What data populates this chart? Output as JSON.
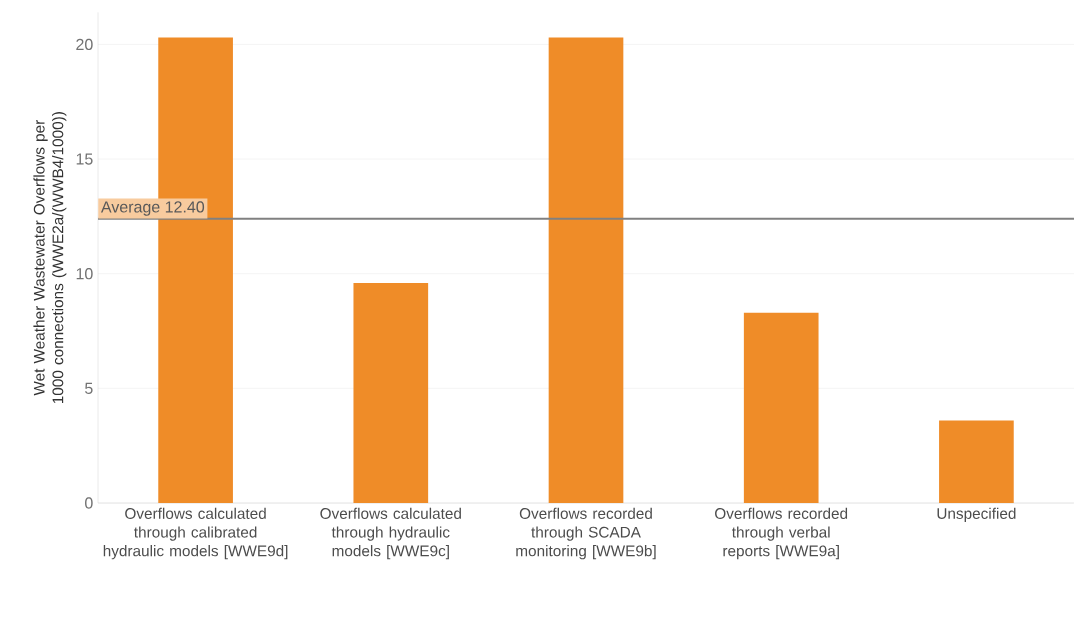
{
  "chart_data": {
    "type": "bar",
    "ylabel": "Wet Weather Wastewater Overflows per 1000 connections (WWE2a/(WWB4/1000))",
    "categories": [
      "Overflows calculated through calibrated hydraulic models [WWE9d]",
      "Overflows calculated through hydraulic models [WWE9c]",
      "Overflows recorded through SCADA monitoring [WWE9b]",
      "Overflows recorded through verbal reports [WWE9a]",
      "Unspecified"
    ],
    "values": [
      20.3,
      9.6,
      20.3,
      8.3,
      3.6
    ],
    "color": "#ef8c28",
    "ylim": [
      0,
      21.4
    ],
    "yticks": [
      0,
      5,
      10,
      15,
      20
    ],
    "grid": "y",
    "ref_lines": [
      {
        "axis": "y",
        "value": 12.4,
        "label": "Average 12.40",
        "color": "#808080"
      }
    ]
  }
}
